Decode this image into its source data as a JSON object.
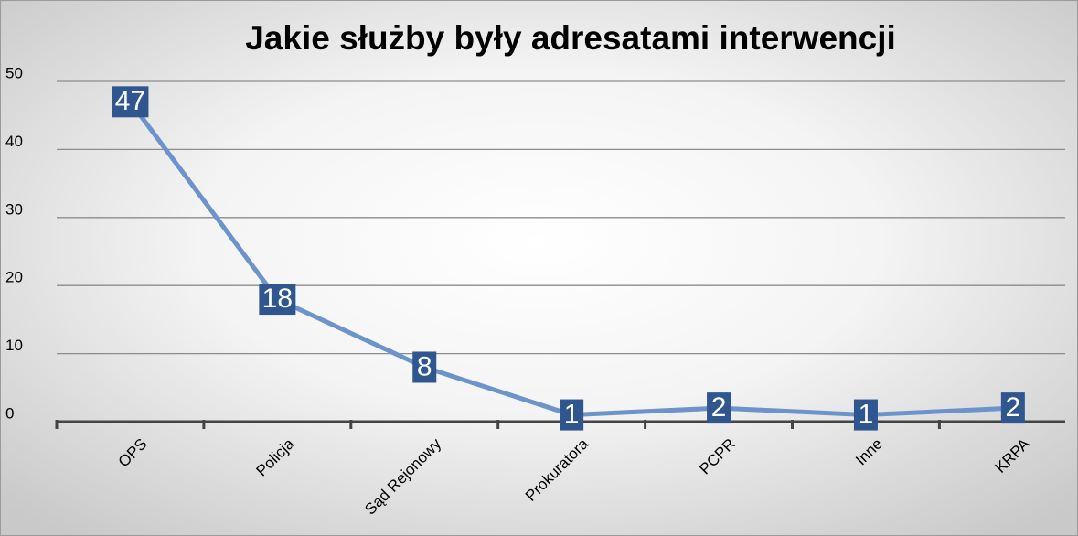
{
  "chart_data": {
    "type": "line",
    "title": "Jakie służby były adresatami interwencji",
    "categories": [
      "OPS",
      "Policja",
      "Sąd Rejonowy",
      "Prokuratora",
      "PCPR",
      "Inne",
      "KRPA"
    ],
    "values": [
      47,
      18,
      8,
      1,
      2,
      1,
      2
    ],
    "color": "#6d93cb",
    "label_color": "#2f568f",
    "ylim": [
      0,
      50
    ],
    "yticks": [
      0,
      10,
      20,
      30,
      40,
      50
    ],
    "grid": true
  }
}
